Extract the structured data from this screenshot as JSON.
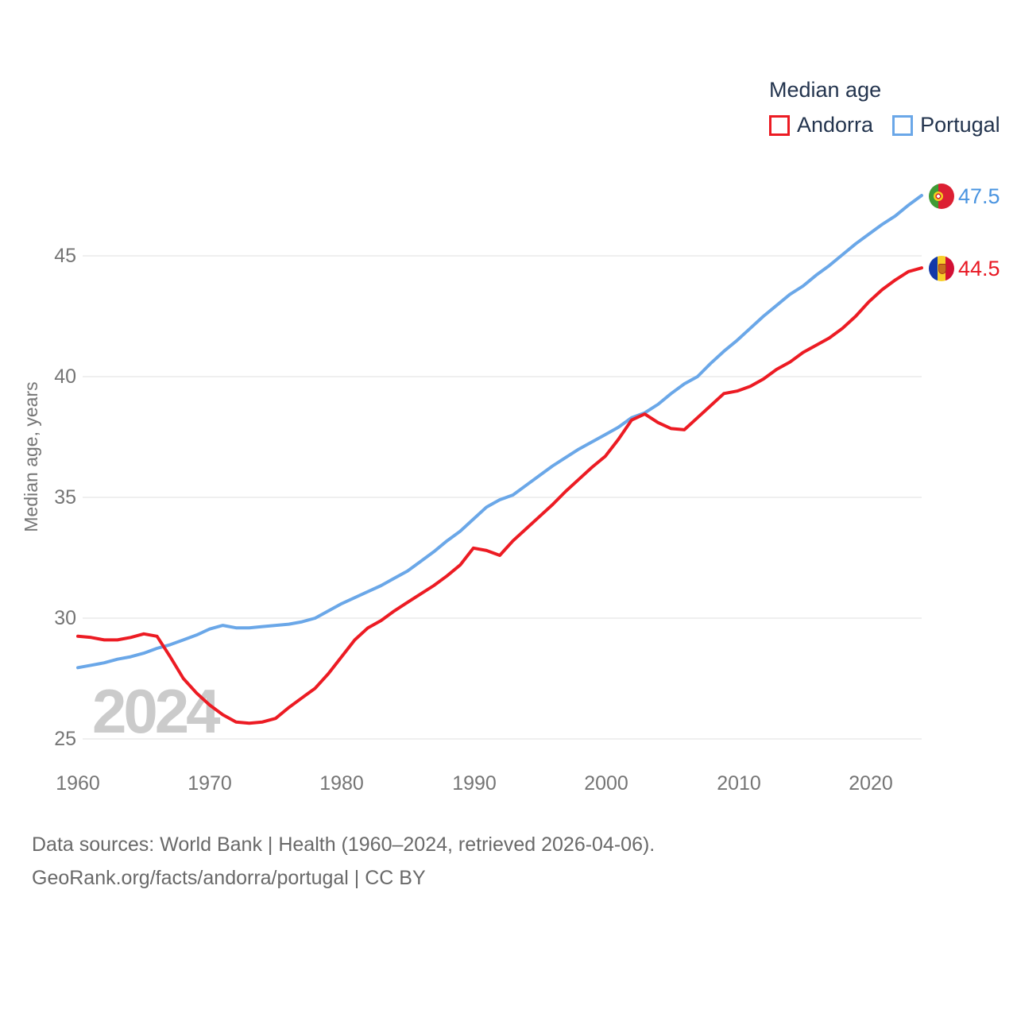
{
  "legend": {
    "title": "Median age",
    "items": [
      {
        "label": "Andorra",
        "color": "#ec1b23"
      },
      {
        "label": "Portugal",
        "color": "#6aa7e8"
      }
    ]
  },
  "y_axis": {
    "title": "Median age, years",
    "tick_labels": [
      "25",
      "30",
      "35",
      "40",
      "45"
    ]
  },
  "x_axis": {
    "tick_labels": [
      "1960",
      "1970",
      "1980",
      "1990",
      "2000",
      "2010",
      "2020"
    ]
  },
  "end_labels": [
    {
      "country": "Portugal",
      "value": "47.5",
      "color": "#4a94e0",
      "flag_icon": "portugal-flag"
    },
    {
      "country": "Andorra",
      "value": "44.5",
      "color": "#e81823",
      "flag_icon": "andorra-flag"
    }
  ],
  "watermark": "2024",
  "footer": {
    "line1": "Data sources: World Bank | Health (1960–2024, retrieved 2026-04-06).",
    "line2": "GeoRank.org/facts/andorra/portugal | CC BY"
  },
  "chart_data": {
    "type": "line",
    "title": "Median age",
    "xlabel": "",
    "ylabel": "Median age, years",
    "xlim": [
      1960,
      2024
    ],
    "ylim": [
      25,
      45
    ],
    "xtick_values": [
      1960,
      1970,
      1980,
      1990,
      2000,
      2010,
      2020
    ],
    "ytick_values": [
      25,
      30,
      35,
      40,
      45
    ],
    "grid": "horizontal",
    "legend_position": "top-right",
    "x": [
      1960,
      1961,
      1962,
      1963,
      1964,
      1965,
      1966,
      1967,
      1968,
      1969,
      1970,
      1971,
      1972,
      1973,
      1974,
      1975,
      1976,
      1977,
      1978,
      1979,
      1980,
      1981,
      1982,
      1983,
      1984,
      1985,
      1986,
      1987,
      1988,
      1989,
      1990,
      1991,
      1992,
      1993,
      1994,
      1995,
      1996,
      1997,
      1998,
      1999,
      2000,
      2001,
      2002,
      2003,
      2004,
      2005,
      2006,
      2007,
      2008,
      2009,
      2010,
      2011,
      2012,
      2013,
      2014,
      2015,
      2016,
      2017,
      2018,
      2019,
      2020,
      2021,
      2022,
      2023,
      2024
    ],
    "series": [
      {
        "name": "Andorra",
        "color": "#ec1b23",
        "end_value": 44.5,
        "values": [
          29.25,
          29.2,
          29.1,
          29.1,
          29.2,
          29.35,
          29.25,
          28.4,
          27.5,
          26.9,
          26.4,
          26.0,
          25.7,
          25.65,
          25.7,
          25.85,
          26.3,
          26.7,
          27.1,
          27.7,
          28.4,
          29.1,
          29.6,
          29.9,
          30.3,
          30.65,
          31.0,
          31.35,
          31.75,
          32.2,
          32.9,
          32.8,
          32.6,
          33.2,
          33.7,
          34.2,
          34.7,
          35.25,
          35.75,
          36.25,
          36.7,
          37.4,
          38.2,
          38.45,
          38.1,
          37.85,
          37.8,
          38.3,
          38.8,
          39.3,
          39.4,
          39.6,
          39.9,
          40.3,
          40.6,
          41.0,
          41.3,
          41.6,
          42.0,
          42.5,
          43.1,
          43.6,
          44.0,
          44.35,
          44.5
        ]
      },
      {
        "name": "Portugal",
        "color": "#6aa7e8",
        "end_value": 47.5,
        "values": [
          27.95,
          28.05,
          28.15,
          28.3,
          28.4,
          28.55,
          28.75,
          28.9,
          29.1,
          29.3,
          29.55,
          29.7,
          29.6,
          29.6,
          29.65,
          29.7,
          29.75,
          29.85,
          30.0,
          30.3,
          30.6,
          30.85,
          31.1,
          31.35,
          31.65,
          31.95,
          32.35,
          32.75,
          33.2,
          33.6,
          34.1,
          34.6,
          34.9,
          35.1,
          35.5,
          35.9,
          36.3,
          36.65,
          37.0,
          37.3,
          37.6,
          37.9,
          38.3,
          38.5,
          38.85,
          39.3,
          39.7,
          40.0,
          40.55,
          41.05,
          41.5,
          42.0,
          42.5,
          42.95,
          43.4,
          43.75,
          44.2,
          44.6,
          45.05,
          45.5,
          45.9,
          46.3,
          46.65,
          47.1,
          47.5
        ]
      }
    ]
  }
}
